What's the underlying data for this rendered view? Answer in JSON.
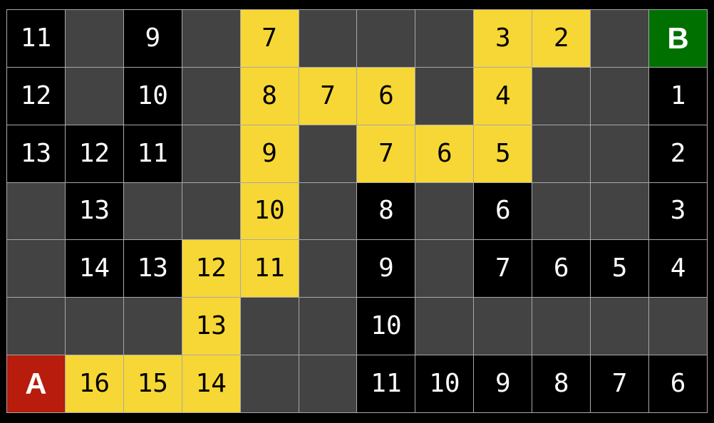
{
  "colors": {
    "background": "#000000",
    "gridline": "#a8a8a8",
    "empty_cell": "#434343",
    "visited_cell": "#000000",
    "path_cell": "#f7d735",
    "start_cell": "#b71c0c",
    "goal_cell": "#007000",
    "number_on_visited": "#ffffff",
    "number_on_path": "#000000",
    "marker_text": "#ffffff"
  },
  "grid": {
    "cols": 12,
    "row_count": 7,
    "start_label": "A",
    "goal_label": "B",
    "rows": [
      [
        {
          "label": "11",
          "type": "visited"
        },
        {
          "label": "",
          "type": "empty"
        },
        {
          "label": "9",
          "type": "visited"
        },
        {
          "label": "",
          "type": "empty"
        },
        {
          "label": "7",
          "type": "path"
        },
        {
          "label": "",
          "type": "empty"
        },
        {
          "label": "",
          "type": "empty"
        },
        {
          "label": "",
          "type": "empty"
        },
        {
          "label": "3",
          "type": "path"
        },
        {
          "label": "2",
          "type": "path"
        },
        {
          "label": "",
          "type": "empty"
        },
        {
          "label": "B",
          "type": "goal"
        }
      ],
      [
        {
          "label": "12",
          "type": "visited"
        },
        {
          "label": "",
          "type": "empty"
        },
        {
          "label": "10",
          "type": "visited"
        },
        {
          "label": "",
          "type": "empty"
        },
        {
          "label": "8",
          "type": "path"
        },
        {
          "label": "7",
          "type": "path"
        },
        {
          "label": "6",
          "type": "path"
        },
        {
          "label": "",
          "type": "empty"
        },
        {
          "label": "4",
          "type": "path"
        },
        {
          "label": "",
          "type": "empty"
        },
        {
          "label": "",
          "type": "empty"
        },
        {
          "label": "1",
          "type": "visited"
        }
      ],
      [
        {
          "label": "13",
          "type": "visited"
        },
        {
          "label": "12",
          "type": "visited"
        },
        {
          "label": "11",
          "type": "visited"
        },
        {
          "label": "",
          "type": "empty"
        },
        {
          "label": "9",
          "type": "path"
        },
        {
          "label": "",
          "type": "empty"
        },
        {
          "label": "7",
          "type": "path"
        },
        {
          "label": "6",
          "type": "path"
        },
        {
          "label": "5",
          "type": "path"
        },
        {
          "label": "",
          "type": "empty"
        },
        {
          "label": "",
          "type": "empty"
        },
        {
          "label": "2",
          "type": "visited"
        }
      ],
      [
        {
          "label": "",
          "type": "empty"
        },
        {
          "label": "13",
          "type": "visited"
        },
        {
          "label": "",
          "type": "empty"
        },
        {
          "label": "",
          "type": "empty"
        },
        {
          "label": "10",
          "type": "path"
        },
        {
          "label": "",
          "type": "empty"
        },
        {
          "label": "8",
          "type": "visited"
        },
        {
          "label": "",
          "type": "empty"
        },
        {
          "label": "6",
          "type": "visited"
        },
        {
          "label": "",
          "type": "empty"
        },
        {
          "label": "",
          "type": "empty"
        },
        {
          "label": "3",
          "type": "visited"
        }
      ],
      [
        {
          "label": "",
          "type": "empty"
        },
        {
          "label": "14",
          "type": "visited"
        },
        {
          "label": "13",
          "type": "visited"
        },
        {
          "label": "12",
          "type": "path"
        },
        {
          "label": "11",
          "type": "path"
        },
        {
          "label": "",
          "type": "empty"
        },
        {
          "label": "9",
          "type": "visited"
        },
        {
          "label": "",
          "type": "empty"
        },
        {
          "label": "7",
          "type": "visited"
        },
        {
          "label": "6",
          "type": "visited"
        },
        {
          "label": "5",
          "type": "visited"
        },
        {
          "label": "4",
          "type": "visited"
        }
      ],
      [
        {
          "label": "",
          "type": "empty"
        },
        {
          "label": "",
          "type": "empty"
        },
        {
          "label": "",
          "type": "empty"
        },
        {
          "label": "13",
          "type": "path"
        },
        {
          "label": "",
          "type": "empty"
        },
        {
          "label": "",
          "type": "empty"
        },
        {
          "label": "10",
          "type": "visited"
        },
        {
          "label": "",
          "type": "empty"
        },
        {
          "label": "",
          "type": "empty"
        },
        {
          "label": "",
          "type": "empty"
        },
        {
          "label": "",
          "type": "empty"
        },
        {
          "label": "",
          "type": "empty"
        }
      ],
      [
        {
          "label": "A",
          "type": "start"
        },
        {
          "label": "16",
          "type": "path"
        },
        {
          "label": "15",
          "type": "path"
        },
        {
          "label": "14",
          "type": "path"
        },
        {
          "label": "",
          "type": "empty"
        },
        {
          "label": "",
          "type": "empty"
        },
        {
          "label": "11",
          "type": "visited"
        },
        {
          "label": "10",
          "type": "visited"
        },
        {
          "label": "9",
          "type": "visited"
        },
        {
          "label": "8",
          "type": "visited"
        },
        {
          "label": "7",
          "type": "visited"
        },
        {
          "label": "6",
          "type": "visited"
        }
      ]
    ]
  }
}
